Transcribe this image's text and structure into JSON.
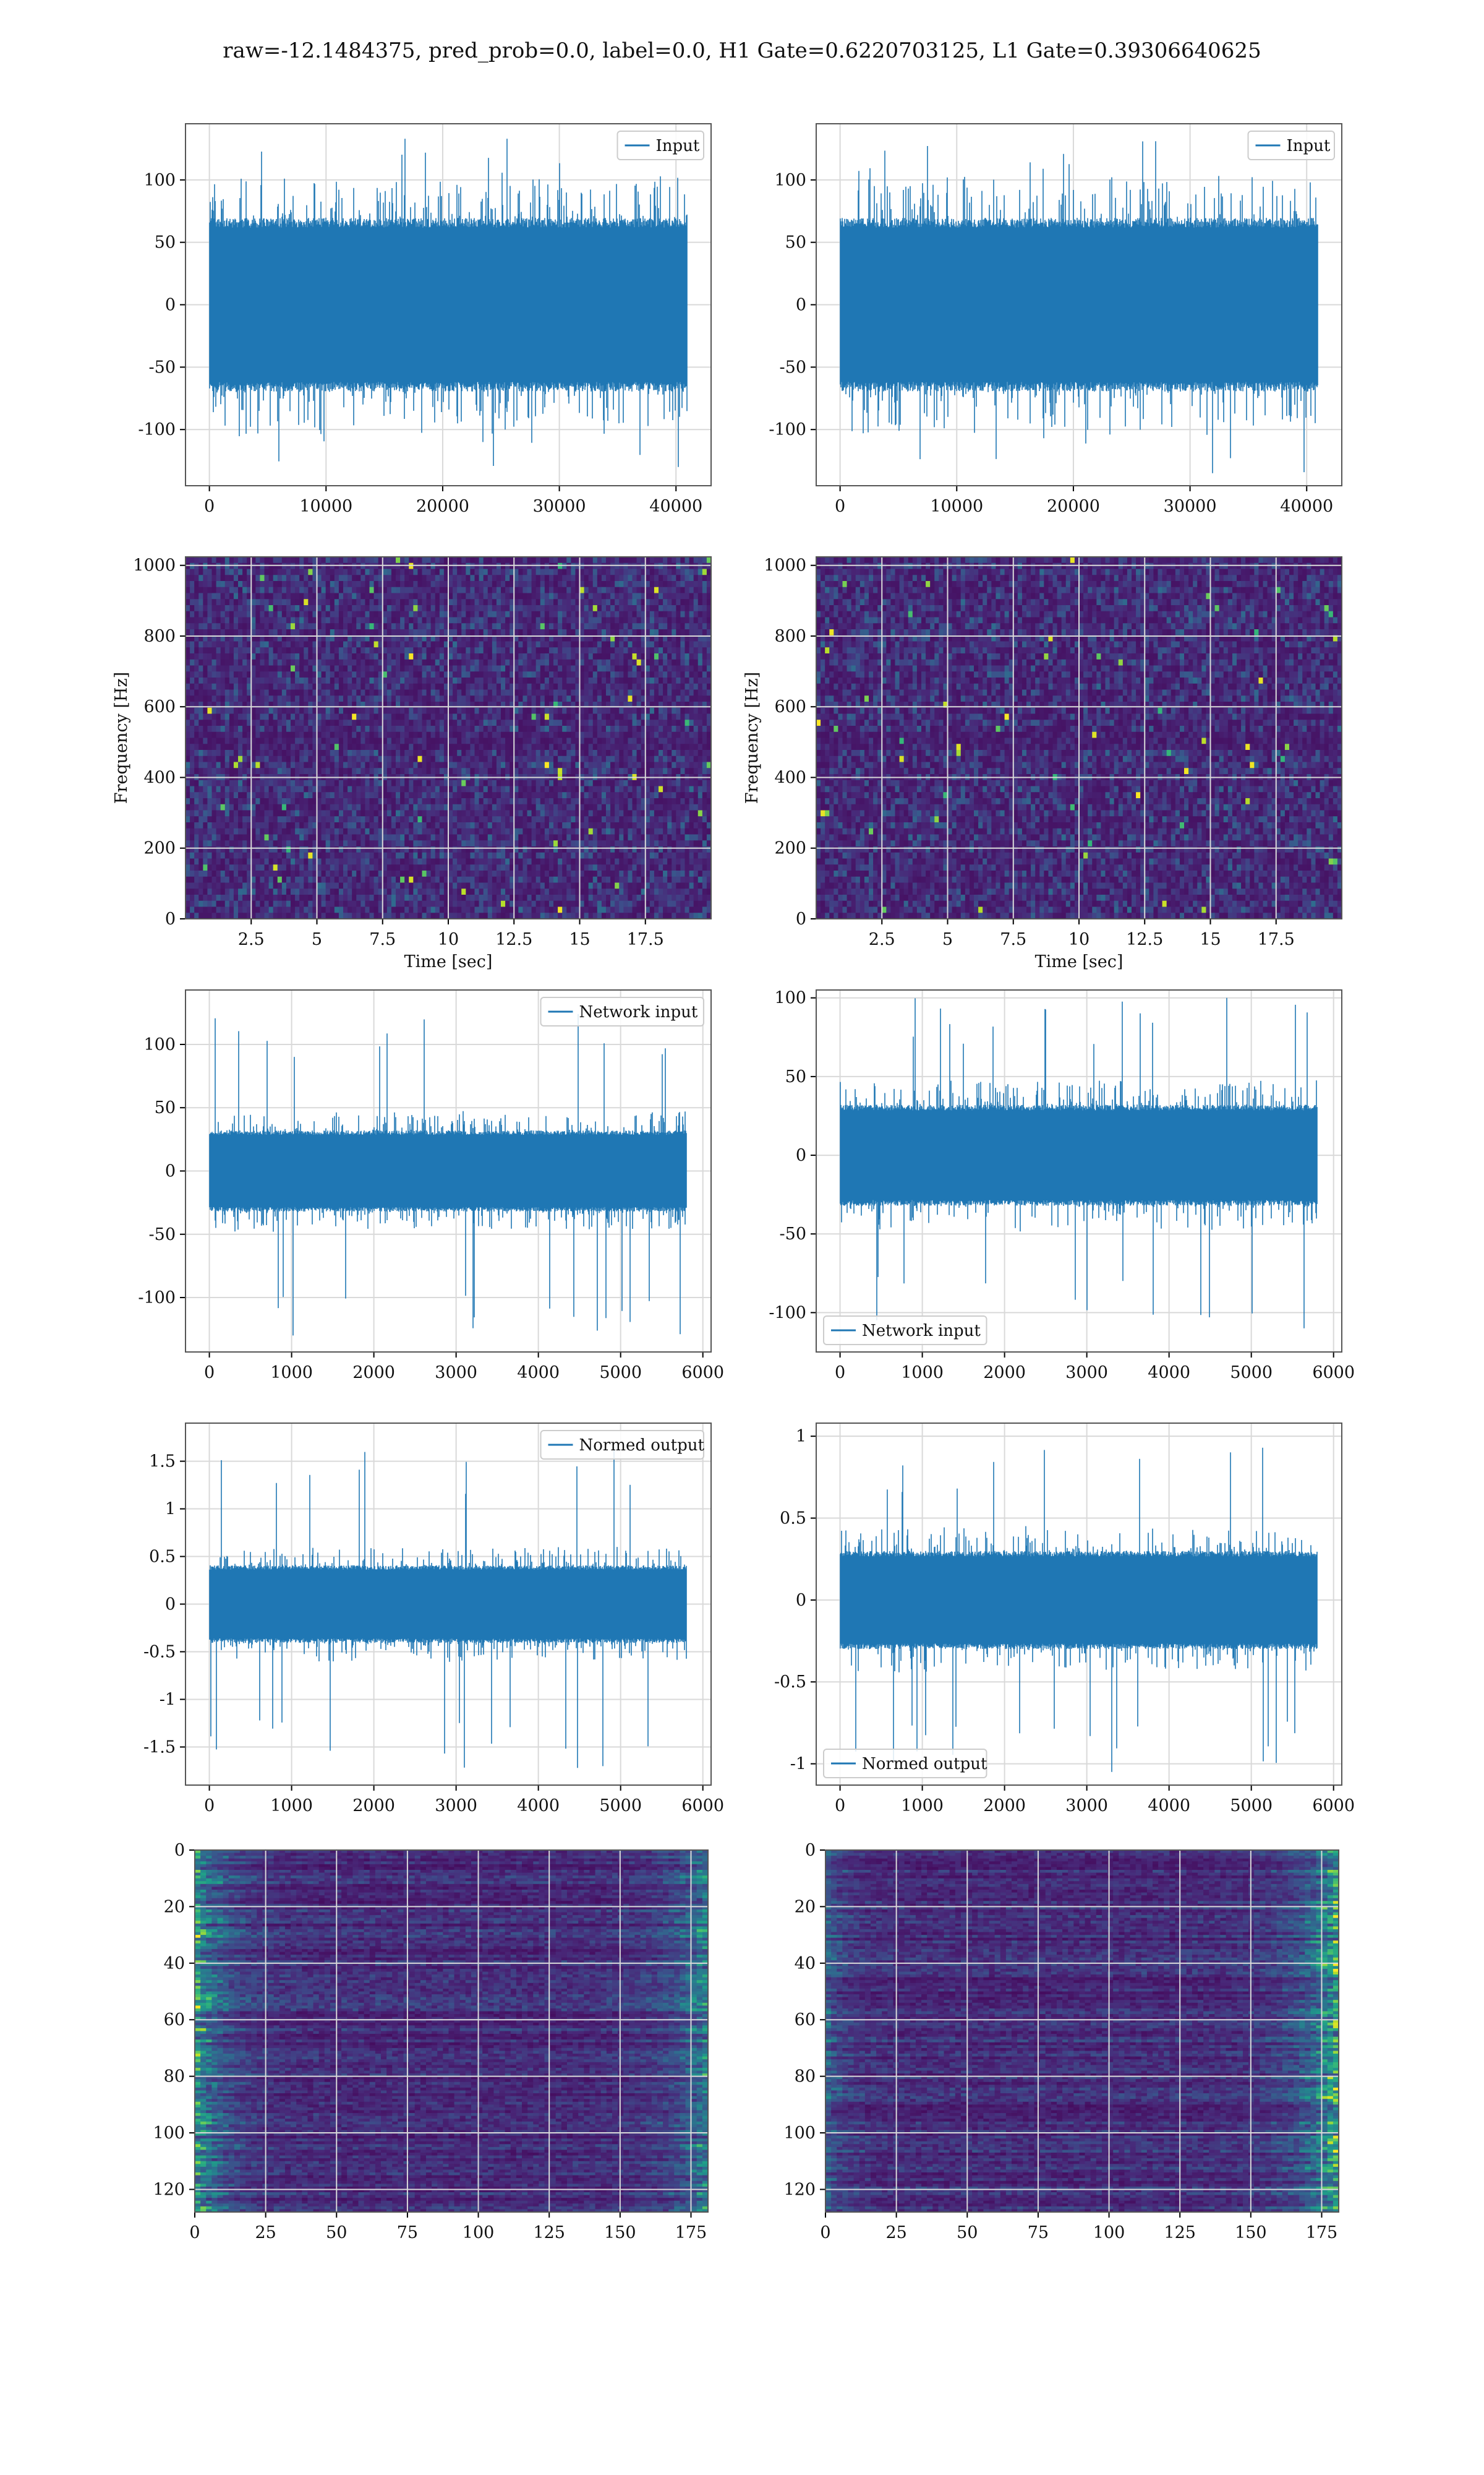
{
  "figure_title": "raw=-12.1484375, pred_prob=0.0, label=0.0, H1 Gate=0.6220703125, L1 Gate=0.39306640625",
  "colors": {
    "series": "#1f77b4",
    "grid": "#d9d9d9",
    "axis": "#555555"
  },
  "chart_data": [
    {
      "type": "line",
      "xlim": [
        -2048,
        43008
      ],
      "ylim": [
        -145,
        145
      ],
      "xticks": [
        0,
        10000,
        20000,
        30000,
        40000
      ],
      "yticks": [
        -100,
        -50,
        0,
        50,
        100
      ],
      "xlabel": "",
      "ylabel": "",
      "grid": true,
      "legend": {
        "label": "Input",
        "loc": "top-right"
      },
      "signal": {
        "n": 40960,
        "envelope": 65,
        "peak_max": 133,
        "peak_min": -130
      }
    },
    {
      "type": "line",
      "xlim": [
        -2048,
        43008
      ],
      "ylim": [
        -145,
        145
      ],
      "xticks": [
        0,
        10000,
        20000,
        30000,
        40000
      ],
      "yticks": [
        -100,
        -50,
        0,
        50,
        100
      ],
      "xlabel": "",
      "ylabel": "",
      "grid": true,
      "legend": {
        "label": "Input",
        "loc": "top-right"
      },
      "signal": {
        "n": 40960,
        "envelope": 65,
        "peak_max": 131,
        "peak_min": -135
      }
    },
    {
      "type": "heatmap",
      "xlim": [
        0,
        20
      ],
      "ylim": [
        0,
        1024
      ],
      "xticks": [
        2.5,
        5.0,
        7.5,
        10.0,
        12.5,
        15.0,
        17.5
      ],
      "yticks": [
        0,
        200,
        400,
        600,
        800,
        1000
      ],
      "xlabel": "Time [sec]",
      "ylabel": "Frequency [Hz]",
      "grid": true,
      "colormap": "viridis"
    },
    {
      "type": "heatmap",
      "xlim": [
        0,
        20
      ],
      "ylim": [
        0,
        1024
      ],
      "xticks": [
        2.5,
        5.0,
        7.5,
        10.0,
        12.5,
        15.0,
        17.5
      ],
      "yticks": [
        0,
        200,
        400,
        600,
        800,
        1000
      ],
      "xlabel": "Time [sec]",
      "ylabel": "Frequency [Hz]",
      "grid": true,
      "colormap": "viridis"
    },
    {
      "type": "line",
      "xlim": [
        -290,
        6100
      ],
      "ylim": [
        -143,
        143
      ],
      "xticks": [
        0,
        1000,
        2000,
        3000,
        4000,
        5000,
        6000
      ],
      "yticks": [
        -100,
        -50,
        0,
        50,
        100
      ],
      "xlabel": "",
      "ylabel": "",
      "grid": true,
      "legend": {
        "label": "Network input",
        "loc": "top-right"
      },
      "signal": {
        "n": 5800,
        "envelope": 30,
        "peak_max": 124,
        "peak_min": -130
      }
    },
    {
      "type": "line",
      "xlim": [
        -290,
        6100
      ],
      "ylim": [
        -125,
        105
      ],
      "xticks": [
        0,
        1000,
        2000,
        3000,
        4000,
        5000,
        6000
      ],
      "yticks": [
        -100,
        -50,
        0,
        50,
        100
      ],
      "xlabel": "",
      "ylabel": "",
      "grid": true,
      "legend": {
        "label": "Network input",
        "loc": "bottom-left"
      },
      "signal": {
        "n": 5800,
        "envelope": 30,
        "peak_max": 100,
        "peak_min": -110
      }
    },
    {
      "type": "line",
      "xlim": [
        -290,
        6100
      ],
      "ylim": [
        -1.9,
        1.9
      ],
      "xticks": [
        0,
        1000,
        2000,
        3000,
        4000,
        5000,
        6000
      ],
      "yticks": [
        -1.5,
        -1.0,
        -0.5,
        0.0,
        0.5,
        1.0,
        1.5
      ],
      "xlabel": "",
      "ylabel": "",
      "grid": true,
      "legend": {
        "label": "Normed output",
        "loc": "top-right"
      },
      "signal": {
        "n": 5800,
        "envelope": 0.38,
        "peak_max": 1.65,
        "peak_min": -1.72
      }
    },
    {
      "type": "line",
      "xlim": [
        -290,
        6100
      ],
      "ylim": [
        -1.13,
        1.08
      ],
      "xticks": [
        0,
        1000,
        2000,
        3000,
        4000,
        5000,
        6000
      ],
      "yticks": [
        -1.0,
        -0.5,
        0.0,
        0.5,
        1.0
      ],
      "xlabel": "",
      "ylabel": "",
      "grid": true,
      "legend": {
        "label": "Normed output",
        "loc": "bottom-left"
      },
      "signal": {
        "n": 5800,
        "envelope": 0.28,
        "peak_max": 0.93,
        "peak_min": -1.05
      }
    },
    {
      "type": "heatmap",
      "xlim": [
        0,
        181
      ],
      "ylim": [
        128,
        0
      ],
      "xticks": [
        0,
        25,
        50,
        75,
        100,
        125,
        150,
        175
      ],
      "yticks": [
        0,
        20,
        40,
        60,
        80,
        100,
        120
      ],
      "xlabel": "",
      "ylabel": "",
      "grid": true,
      "colormap": "viridis"
    },
    {
      "type": "heatmap",
      "xlim": [
        0,
        181
      ],
      "ylim": [
        128,
        0
      ],
      "xticks": [
        0,
        25,
        50,
        75,
        100,
        125,
        150,
        175
      ],
      "yticks": [
        0,
        20,
        40,
        60,
        80,
        100,
        120
      ],
      "xlabel": "",
      "ylabel": "",
      "grid": true,
      "colormap": "viridis"
    }
  ]
}
